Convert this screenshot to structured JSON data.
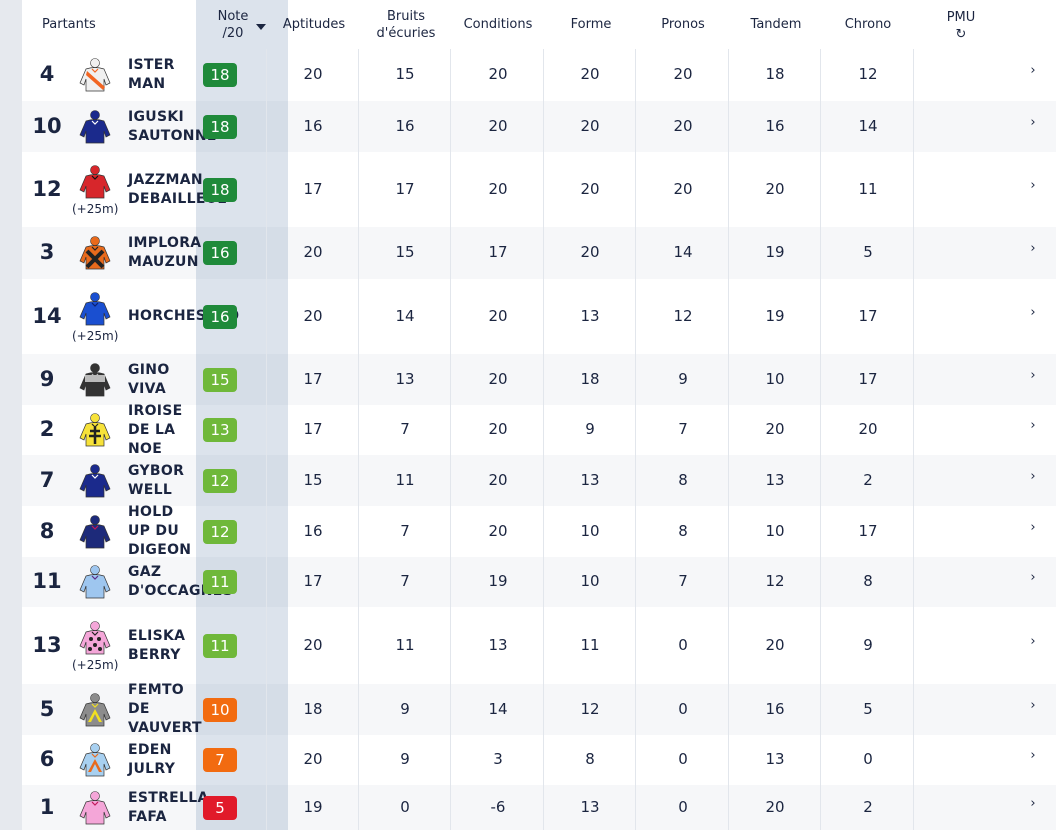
{
  "header": {
    "partants": "Partants",
    "note_line1": "Note",
    "note_line2": "/20",
    "aptitudes": "Aptitudes",
    "bruits_line1": "Bruits",
    "bruits_line2": "d'écuries",
    "conditions": "Conditions",
    "forme": "Forme",
    "pronos": "Pronos",
    "tandem": "Tandem",
    "chrono": "Chrono",
    "pmu": "PMU",
    "pmu_icon": "refresh-icon"
  },
  "colors": {
    "dark_green": "#1f8a3a",
    "light_green": "#6fb83a",
    "orange": "#f26b10",
    "red": "#e11a2a"
  },
  "rows": [
    {
      "num": "4",
      "name": [
        "ISTER",
        "MAN"
      ],
      "handicap": "",
      "note": "18",
      "scores": [
        "20",
        "15",
        "20",
        "20",
        "20",
        "18",
        "12"
      ],
      "silk": {
        "body": "#f0f0f0",
        "accent": "#f26522",
        "pattern": "sash"
      },
      "arrow": "›"
    },
    {
      "num": "10",
      "name": [
        "IGUSKI",
        "SAUTONNE"
      ],
      "handicap": "",
      "note": "18",
      "scores": [
        "16",
        "16",
        "20",
        "20",
        "20",
        "16",
        "14"
      ],
      "silk": {
        "body": "#1b2a8c",
        "accent": "#ffffff",
        "pattern": "plain"
      },
      "arrow": "›"
    },
    {
      "num": "12",
      "name": [
        "JAZZMAN",
        "DEBAILLEUL"
      ],
      "handicap": "(+25m)",
      "note": "18",
      "scores": [
        "17",
        "17",
        "20",
        "20",
        "20",
        "20",
        "11"
      ],
      "silk": {
        "body": "#d7262b",
        "accent": "#111111",
        "pattern": "plain"
      },
      "arrow": "›"
    },
    {
      "num": "3",
      "name": [
        "IMPLORA",
        "MAUZUN"
      ],
      "handicap": "",
      "note": "16",
      "scores": [
        "20",
        "15",
        "17",
        "20",
        "14",
        "19",
        "5"
      ],
      "silk": {
        "body": "#e86a1c",
        "accent": "#222222",
        "pattern": "cross"
      },
      "arrow": "›"
    },
    {
      "num": "14",
      "name": [
        "HORCHESTRO"
      ],
      "handicap": "(+25m)",
      "note": "16",
      "scores": [
        "20",
        "14",
        "20",
        "13",
        "12",
        "19",
        "17"
      ],
      "silk": {
        "body": "#1a4fd0",
        "accent": "#0b2070",
        "pattern": "plain"
      },
      "arrow": "›"
    },
    {
      "num": "9",
      "name": [
        "GINO",
        "VIVA"
      ],
      "handicap": "",
      "note": "15",
      "scores": [
        "17",
        "13",
        "20",
        "18",
        "9",
        "10",
        "17"
      ],
      "silk": {
        "body": "#333333",
        "accent": "#bbbbbb",
        "pattern": "yoke"
      },
      "arrow": "›"
    },
    {
      "num": "2",
      "name": [
        "IROISE",
        "DE LA",
        "NOE"
      ],
      "handicap": "",
      "note": "13",
      "scores": [
        "17",
        "7",
        "20",
        "9",
        "7",
        "20",
        "20"
      ],
      "silk": {
        "body": "#f7e23a",
        "accent": "#222222",
        "pattern": "lorraine"
      },
      "arrow": "›"
    },
    {
      "num": "7",
      "name": [
        "GYBOR",
        "WELL"
      ],
      "handicap": "",
      "note": "12",
      "scores": [
        "15",
        "11",
        "20",
        "13",
        "8",
        "13",
        "2"
      ],
      "silk": {
        "body": "#1b2a8c",
        "accent": "#ffffff",
        "pattern": "plain"
      },
      "arrow": "›"
    },
    {
      "num": "8",
      "name": [
        "HOLD",
        "UP DU",
        "DIGEON"
      ],
      "handicap": "",
      "note": "12",
      "scores": [
        "16",
        "7",
        "20",
        "10",
        "8",
        "10",
        "17"
      ],
      "silk": {
        "body": "#1d2a7a",
        "accent": "#c2185b",
        "pattern": "plain"
      },
      "arrow": "›"
    },
    {
      "num": "11",
      "name": [
        "GAZ",
        "D'OCCAGNES"
      ],
      "handicap": "",
      "note": "11",
      "scores": [
        "17",
        "7",
        "19",
        "10",
        "7",
        "12",
        "8"
      ],
      "silk": {
        "body": "#9ec6ef",
        "accent": "#5a2a8a",
        "pattern": "plain"
      },
      "arrow": "›"
    },
    {
      "num": "13",
      "name": [
        "ELISKA",
        "BERRY"
      ],
      "handicap": "(+25m)",
      "note": "11",
      "scores": [
        "20",
        "11",
        "13",
        "11",
        "0",
        "20",
        "9"
      ],
      "silk": {
        "body": "#f4a6d8",
        "accent": "#222222",
        "pattern": "dots"
      },
      "arrow": "›"
    },
    {
      "num": "5",
      "name": [
        "FEMTO",
        "DE",
        "VAUVERT"
      ],
      "handicap": "",
      "note": "10",
      "scores": [
        "18",
        "9",
        "14",
        "12",
        "0",
        "16",
        "5"
      ],
      "silk": {
        "body": "#8c8c8c",
        "accent": "#f2e020",
        "pattern": "chevron"
      },
      "arrow": "›"
    },
    {
      "num": "6",
      "name": [
        "EDEN",
        "JULRY"
      ],
      "handicap": "",
      "note": "7",
      "scores": [
        "20",
        "9",
        "3",
        "8",
        "0",
        "13",
        "0"
      ],
      "silk": {
        "body": "#a8d0f0",
        "accent": "#e86a1c",
        "pattern": "chevron"
      },
      "arrow": "›"
    },
    {
      "num": "1",
      "name": [
        "ESTRELLA",
        "FAFA"
      ],
      "handicap": "",
      "note": "5",
      "scores": [
        "19",
        "0",
        "-6",
        "13",
        "0",
        "20",
        "2"
      ],
      "silk": {
        "body": "#f4a6d8",
        "accent": "#c2185b",
        "pattern": "plain"
      },
      "arrow": "›"
    }
  ]
}
